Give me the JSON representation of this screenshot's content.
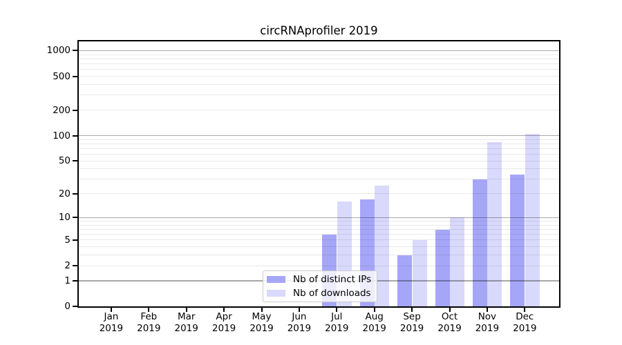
{
  "chart_data": {
    "type": "bar",
    "title": "circRNAprofiler 2019",
    "year": "2019",
    "months": [
      "Jan",
      "Feb",
      "Mar",
      "Apr",
      "May",
      "Jun",
      "Jul",
      "Aug",
      "Sep",
      "Oct",
      "Nov",
      "Dec"
    ],
    "categories": [
      "Jan 2019",
      "Feb 2019",
      "Mar 2019",
      "Apr 2019",
      "May 2019",
      "Jun 2019",
      "Jul 2019",
      "Aug 2019",
      "Sep 2019",
      "Oct 2019",
      "Nov 2019",
      "Dec 2019"
    ],
    "series": [
      {
        "name": "Nb of distinct IPs",
        "color": "#a6a6f8",
        "values": [
          0,
          0,
          0,
          0,
          0,
          0,
          6,
          17,
          3,
          7,
          30,
          34
        ]
      },
      {
        "name": "Nb of downloads",
        "color": "#d9d9fb",
        "values": [
          0,
          0,
          0,
          0,
          0,
          0,
          16,
          25,
          5,
          10,
          83,
          105
        ]
      }
    ],
    "xlabel": "",
    "ylabel": "",
    "y_axis": {
      "scale": "log1p",
      "ylim": [
        0,
        1285
      ],
      "ticks": [
        0,
        1,
        2,
        5,
        10,
        20,
        50,
        100,
        200,
        500,
        1000
      ],
      "major_gridlines": [
        1,
        10,
        100,
        1000
      ],
      "grid": true
    },
    "legend": {
      "position": "lower center",
      "frame": true
    }
  },
  "style_colors": {
    "axis": "#000000",
    "background": "#ffffff",
    "major_grid": "rgba(0,0,0,0.34)",
    "minor_grid": "rgba(0,0,0,0.085)",
    "legend_border": "#cbcbcb"
  }
}
